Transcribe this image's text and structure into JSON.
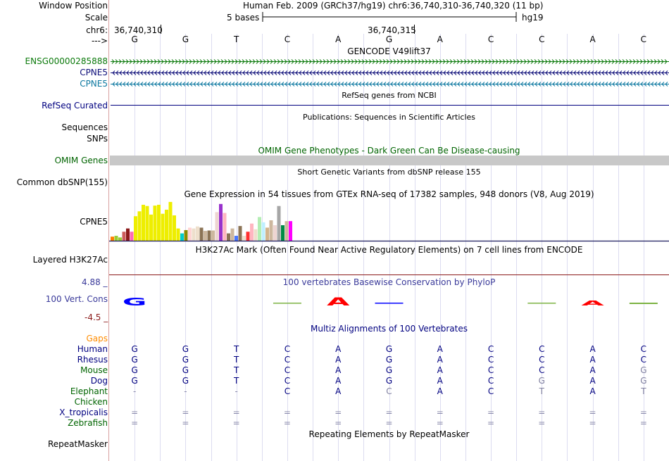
{
  "header": {
    "window_position_label": "Window Position",
    "window_position_value": "Human Feb. 2009 (GRCh37/hg19)   chr6:36,740,310-36,740,320 (11 bp)",
    "scale_label": "Scale",
    "scale_value": "5 bases",
    "scale_assembly": "hg19",
    "chrom_label": "chr6:",
    "pos_left": "36,740,310",
    "pos_mid": "36,740,315",
    "strand_label": "--->",
    "bases": [
      "G",
      "G",
      "T",
      "C",
      "A",
      "G",
      "A",
      "C",
      "C",
      "A",
      "C"
    ]
  },
  "tracks": {
    "gencode_title": "GENCODE V49lift37",
    "gencode_rows": [
      {
        "name": "ENSG00000285888",
        "color": "#0c7a0c",
        "dir": "right"
      },
      {
        "name": "CPNE5",
        "color": "#0c0c78",
        "dir": "left"
      },
      {
        "name": "CPNE5",
        "color": "#0c78a0",
        "dir": "left"
      }
    ],
    "refseq_title": "RefSeq genes from NCBI",
    "refseq_label": "RefSeq Curated",
    "pubs_title": "Publications: Sequences in Scientific Articles",
    "sequences_label": "Sequences",
    "snps_label": "SNPs",
    "omim_title": "OMIM Gene Phenotypes - Dark Green Can Be Disease-causing",
    "omim_label": "OMIM Genes",
    "dbsnp_title": "Short Genetic Variants from dbSNP release 155",
    "dbsnp_label": "Common dbSNP(155)",
    "gtex_title": "Gene Expression in 54 tissues from GTEx RNA-seq of 17382 samples, 948 donors (V8, Aug 2019)",
    "gtex_label": "CPNE5",
    "h3k27_title": "H3K27Ac Mark (Often Found Near Active Regulatory Elements) on 7 cell lines from ENCODE",
    "h3k27_label": "Layered H3K27Ac",
    "phylop_title": "100 vertebrates Basewise Conservation by PhyloP",
    "phylop_label": "100 Vert. Cons",
    "phylop_max": "4.88 _",
    "phylop_min": "-4.5 _",
    "multiz_title": "Multiz Alignments of 100 Vertebrates",
    "gaps_label": "Gaps",
    "repeat_title": "Repeating Elements by RepeatMasker",
    "repeat_label": "RepeatMasker"
  },
  "gtex_bars": [
    {
      "v": 0.1,
      "c": "#ff7f00"
    },
    {
      "v": 0.12,
      "c": "#9acd32"
    },
    {
      "v": 0.08,
      "c": "#9acd32"
    },
    {
      "v": 0.22,
      "c": "#cd5c5c"
    },
    {
      "v": 0.3,
      "c": "#8b1a1a"
    },
    {
      "v": 0.22,
      "c": "#ff69b4"
    },
    {
      "v": 0.6,
      "c": "#eeee00"
    },
    {
      "v": 0.72,
      "c": "#eeee00"
    },
    {
      "v": 0.88,
      "c": "#eeee00"
    },
    {
      "v": 0.85,
      "c": "#eeee00"
    },
    {
      "v": 0.64,
      "c": "#eeee00"
    },
    {
      "v": 0.86,
      "c": "#eeee00"
    },
    {
      "v": 0.88,
      "c": "#eeee00"
    },
    {
      "v": 0.66,
      "c": "#eeee00"
    },
    {
      "v": 0.76,
      "c": "#eeee00"
    },
    {
      "v": 0.95,
      "c": "#eeee00"
    },
    {
      "v": 0.62,
      "c": "#eeee00"
    },
    {
      "v": 0.3,
      "c": "#eeee00"
    },
    {
      "v": 0.18,
      "c": "#00cdcd"
    },
    {
      "v": 0.26,
      "c": "#8b8b00"
    },
    {
      "v": 0.32,
      "c": "#ffd4d4"
    },
    {
      "v": 0.3,
      "c": "#eedfcc"
    },
    {
      "v": 0.35,
      "c": "#eedfcc"
    },
    {
      "v": 0.32,
      "c": "#8b7355"
    },
    {
      "v": 0.24,
      "c": "#cdb79e"
    },
    {
      "v": 0.25,
      "c": "#8b7355"
    },
    {
      "v": 0.25,
      "c": "#cdb79e"
    },
    {
      "v": 0.7,
      "c": "#eed5d2"
    },
    {
      "v": 0.9,
      "c": "#9932cc"
    },
    {
      "v": 0.68,
      "c": "#ffb6c1"
    },
    {
      "v": 0.18,
      "c": "#8b7355"
    },
    {
      "v": 0.3,
      "c": "#cdb79e"
    },
    {
      "v": 0.12,
      "c": "#4876ff"
    },
    {
      "v": 0.36,
      "c": "#8b7355"
    },
    {
      "v": 0.12,
      "c": "#eedfcc"
    },
    {
      "v": 0.22,
      "c": "#ff3030"
    },
    {
      "v": 0.42,
      "c": "#ffb6c1"
    },
    {
      "v": 0.28,
      "c": "#eedfcc"
    },
    {
      "v": 0.58,
      "c": "#b4eeb4"
    },
    {
      "v": 0.45,
      "c": "#bfefff"
    },
    {
      "v": 0.32,
      "c": "#d2b48c"
    },
    {
      "v": 0.5,
      "c": "#cdb79e"
    },
    {
      "v": 0.38,
      "c": "#eed5d2"
    },
    {
      "v": 0.85,
      "c": "#a6a6a6"
    },
    {
      "v": 0.38,
      "c": "#008b45"
    },
    {
      "v": 0.48,
      "c": "#cdb79e"
    },
    {
      "v": 0.48,
      "c": "#ff00ff"
    }
  ],
  "phylop": [
    {
      "glyph": "G",
      "color": "#0000ff",
      "value": 1.6,
      "shape": "thin"
    },
    {
      "glyph": "",
      "color": "#000000",
      "value": 0.0,
      "shape": "none"
    },
    {
      "glyph": "",
      "color": "#000000",
      "value": 0.0,
      "shape": "none"
    },
    {
      "glyph": "",
      "color": "#7cb342",
      "value": 0.3,
      "shape": "flat"
    },
    {
      "glyph": "A",
      "color": "#ff0000",
      "value": 1.8,
      "shape": "thin"
    },
    {
      "glyph": "",
      "color": "#0000ff",
      "value": 0.1,
      "shape": "flat"
    },
    {
      "glyph": "",
      "color": "#000000",
      "value": 0.0,
      "shape": "none"
    },
    {
      "glyph": "",
      "color": "#000000",
      "value": 0.0,
      "shape": "none"
    },
    {
      "glyph": "",
      "color": "#7cb342",
      "value": 0.2,
      "shape": "flat"
    },
    {
      "glyph": "A",
      "color": "#ff0000",
      "value": 0.6,
      "shape": "thin"
    },
    {
      "glyph": "",
      "color": "#7cb342",
      "value": 0.4,
      "shape": "flat"
    }
  ],
  "alignment": [
    {
      "species": "Human",
      "color": "#000080",
      "seq": [
        "G",
        "G",
        "T",
        "C",
        "A",
        "G",
        "A",
        "C",
        "C",
        "A",
        "C"
      ]
    },
    {
      "species": "Rhesus",
      "color": "#000080",
      "seq": [
        "G",
        "G",
        "T",
        "C",
        "A",
        "G",
        "A",
        "C",
        "C",
        "A",
        "C"
      ]
    },
    {
      "species": "Mouse",
      "color": "#006400",
      "seq": [
        "G",
        "G",
        "T",
        "C",
        "A",
        "G",
        "A",
        "C",
        "C",
        "A",
        "G"
      ]
    },
    {
      "species": "Dog",
      "color": "#000080",
      "seq": [
        "G",
        "G",
        "T",
        "C",
        "A",
        "G",
        "A",
        "C",
        "G",
        "A",
        "G"
      ]
    },
    {
      "species": "Elephant",
      "color": "#006400",
      "seq": [
        "-",
        "-",
        "-",
        "C",
        "A",
        "C",
        "A",
        "C",
        "T",
        "A",
        "T"
      ]
    },
    {
      "species": "Chicken",
      "color": "#006400",
      "seq": []
    },
    {
      "species": "X_tropicalis",
      "color": "#000080",
      "seq": [
        "=",
        "=",
        "=",
        "=",
        "=",
        "=",
        "=",
        "=",
        "=",
        "=",
        "="
      ]
    },
    {
      "species": "Zebrafish",
      "color": "#006400",
      "seq": [
        "=",
        "=",
        "=",
        "=",
        "=",
        "=",
        "=",
        "=",
        "=",
        "=",
        "="
      ]
    }
  ],
  "alignment_diff_color": "#8080a0",
  "colors": {
    "navy": "#000080",
    "green": "#006400",
    "omim_bar": "#c8c8c8",
    "grid": "#dcdcf0",
    "gaps_label": "#ff8c00",
    "phylop_label": "#3a3a9a",
    "phylop_min_label": "#8b1a1a"
  }
}
